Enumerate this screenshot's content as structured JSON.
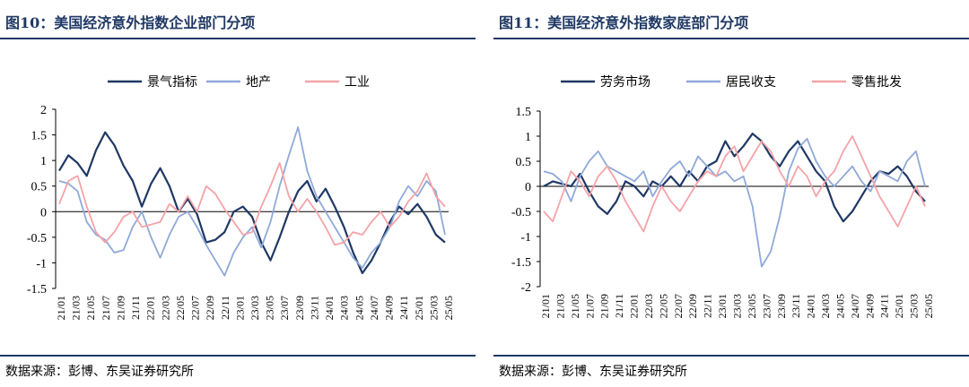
{
  "panels": [
    {
      "figure_title": "图10：美国经济意外指数企业部门分项",
      "source": "数据来源：彭博、东吴证券研究所"
    },
    {
      "figure_title": "图11：美国经济意外指数家庭部门分项",
      "source": "数据来源：彭博、东吴证券研究所"
    }
  ],
  "chart_data": [
    {
      "type": "line",
      "title": "",
      "xlabel": "",
      "ylabel": "",
      "ylim": [
        -1.5,
        2
      ],
      "yticks": [
        "2",
        "1.5",
        "1",
        "0.5",
        "0",
        "-0.5",
        "-1",
        "-1.5"
      ],
      "ytick_values": [
        2,
        1.5,
        1,
        0.5,
        0,
        -0.5,
        -1,
        -1.5
      ],
      "xticks": [
        "21/01",
        "21/03",
        "21/05",
        "21/07",
        "21/09",
        "21/11",
        "22/01",
        "22/03",
        "22/05",
        "22/07",
        "22/09",
        "22/11",
        "23/01",
        "23/03",
        "23/05",
        "23/07",
        "23/09",
        "23/11",
        "24/01",
        "24/03",
        "24/05",
        "24/07",
        "24/09",
        "24/11",
        "25/01",
        "25/03",
        "25/05"
      ],
      "legend_position": "top",
      "grid": false,
      "series": [
        {
          "name": "景气指标",
          "color": "#1f3864",
          "values": [
            0.8,
            1.1,
            0.95,
            0.7,
            1.2,
            1.55,
            1.3,
            0.9,
            0.6,
            0.1,
            0.55,
            0.85,
            0.5,
            0.0,
            0.25,
            -0.05,
            -0.6,
            -0.55,
            -0.4,
            0.0,
            0.1,
            -0.1,
            -0.6,
            -0.95,
            -0.5,
            0.0,
            0.4,
            0.6,
            0.2,
            0.45,
            0.1,
            -0.3,
            -0.8,
            -1.2,
            -0.95,
            -0.6,
            -0.2,
            0.1,
            -0.05,
            0.15,
            -0.1,
            -0.45,
            -0.6
          ]
        },
        {
          "name": "地产",
          "color": "#8fa9d8",
          "values": [
            0.6,
            0.55,
            0.4,
            -0.2,
            -0.45,
            -0.55,
            -0.8,
            -0.75,
            -0.3,
            0.0,
            -0.5,
            -0.9,
            -0.45,
            -0.1,
            0.0,
            -0.3,
            -0.65,
            -0.95,
            -1.25,
            -0.8,
            -0.5,
            -0.3,
            -0.7,
            -0.2,
            0.5,
            1.1,
            1.65,
            0.8,
            0.3,
            0.0,
            -0.3,
            -0.6,
            -0.9,
            -1.1,
            -0.8,
            -0.6,
            -0.3,
            0.2,
            0.5,
            0.3,
            0.6,
            0.4,
            -0.45
          ]
        },
        {
          "name": "工业",
          "color": "#f4a3a8",
          "values": [
            0.15,
            0.6,
            0.7,
            0.1,
            -0.4,
            -0.6,
            -0.4,
            -0.1,
            0.0,
            -0.3,
            -0.25,
            -0.2,
            0.15,
            0.0,
            0.3,
            0.0,
            0.5,
            0.35,
            0.05,
            -0.2,
            -0.45,
            -0.4,
            0.1,
            0.5,
            0.95,
            0.3,
            0.0,
            0.25,
            0.0,
            -0.3,
            -0.65,
            -0.6,
            -0.4,
            -0.45,
            -0.2,
            0.0,
            -0.3,
            -0.1,
            0.2,
            0.4,
            0.75,
            0.3,
            0.1
          ]
        }
      ]
    },
    {
      "type": "line",
      "title": "",
      "xlabel": "",
      "ylabel": "",
      "ylim": [
        -2,
        1.5
      ],
      "yticks": [
        "1.5",
        "1",
        "0.5",
        "0",
        "-0.5",
        "-1",
        "-1.5",
        "-2"
      ],
      "ytick_values": [
        1.5,
        1,
        0.5,
        0,
        -0.5,
        -1,
        -1.5,
        -2
      ],
      "xticks": [
        "21/01",
        "21/03",
        "21/05",
        "21/07",
        "21/09",
        "21/11",
        "22/01",
        "22/03",
        "22/05",
        "22/07",
        "22/09",
        "22/11",
        "23/01",
        "23/03",
        "23/05",
        "23/07",
        "23/09",
        "23/11",
        "24/01",
        "24/03",
        "24/05",
        "24/07",
        "24/09",
        "24/11",
        "25/01",
        "25/03",
        "25/05"
      ],
      "legend_position": "top",
      "grid": false,
      "series": [
        {
          "name": "劳务市场",
          "color": "#1f3864",
          "values": [
            0.0,
            0.1,
            0.05,
            0.0,
            0.25,
            -0.1,
            -0.4,
            -0.55,
            -0.3,
            0.1,
            0.0,
            -0.2,
            0.1,
            0.0,
            0.2,
            0.0,
            0.3,
            0.1,
            0.4,
            0.5,
            0.9,
            0.6,
            0.8,
            1.05,
            0.9,
            0.6,
            0.4,
            0.7,
            0.9,
            0.6,
            0.3,
            0.1,
            -0.4,
            -0.7,
            -0.5,
            -0.2,
            0.1,
            0.3,
            0.25,
            0.4,
            0.2,
            -0.1,
            -0.3
          ]
        },
        {
          "name": "居民收支",
          "color": "#8fa9d8",
          "values": [
            0.3,
            0.25,
            0.1,
            -0.3,
            0.2,
            0.5,
            0.7,
            0.4,
            0.3,
            0.2,
            0.1,
            0.3,
            -0.2,
            0.1,
            0.35,
            0.5,
            0.2,
            0.6,
            0.4,
            0.2,
            0.3,
            0.1,
            0.2,
            -0.4,
            -1.6,
            -1.3,
            -0.6,
            0.3,
            0.75,
            0.95,
            0.5,
            0.2,
            0.0,
            0.2,
            0.4,
            0.1,
            -0.1,
            0.3,
            0.2,
            0.1,
            0.5,
            0.7,
            0.0
          ]
        },
        {
          "name": "零售批发",
          "color": "#f4a3a8",
          "values": [
            -0.5,
            -0.7,
            -0.2,
            0.3,
            0.1,
            -0.2,
            0.2,
            0.4,
            0.1,
            -0.3,
            -0.6,
            -0.9,
            -0.4,
            0.0,
            -0.3,
            -0.5,
            -0.2,
            0.1,
            0.3,
            0.2,
            0.6,
            0.8,
            0.3,
            0.6,
            0.9,
            0.7,
            0.3,
            0.0,
            0.4,
            0.2,
            -0.2,
            0.1,
            0.3,
            0.7,
            1.0,
            0.6,
            0.2,
            -0.2,
            -0.5,
            -0.8,
            -0.4,
            0.0,
            -0.4
          ]
        }
      ]
    }
  ]
}
